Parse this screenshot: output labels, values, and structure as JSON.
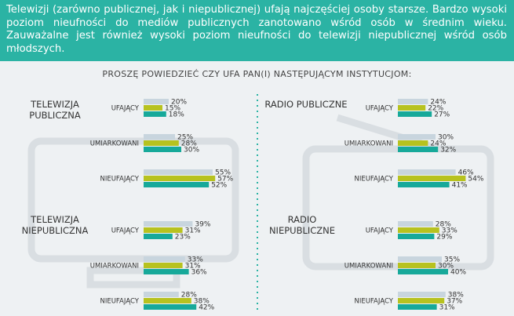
{
  "intro": "Telewizji (zarówno publicznej, jak i niepublicznej) ufają najczęściej osoby starsze. Bardzo wysoki poziom nieufności do mediów publicznych zanotowano wśród osób w średnim wieku. Zauważalne jest również wysoki poziom nieufności do telewizji niepublicznej wśród osób młodszych.",
  "question": "PROSZĘ POWIEDZIEĆ CZY UFA PAN(I) NASTĘPUJĄCYM INSTYTUCJOM:",
  "chart_data": [
    {
      "type": "bar",
      "orientation": "horizontal",
      "title": "TELEWIZJA PUBLICZNA",
      "categories": [
        "UFAJĄCY",
        "UMIARKOWANI",
        "NIEUFAJĄCY"
      ],
      "series": [
        {
          "color": "#c8d5de",
          "values": [
            20,
            25,
            55
          ],
          "value_labels": [
            "20%",
            "25%",
            "55%"
          ]
        },
        {
          "color": "#b7c21f",
          "values": [
            15,
            28,
            57
          ],
          "value_labels": [
            "15%",
            "28%",
            "57%"
          ]
        },
        {
          "color": "#17a99a",
          "values": [
            18,
            30,
            52
          ],
          "value_labels": [
            "18%",
            "30%",
            "52%"
          ]
        }
      ]
    },
    {
      "type": "bar",
      "orientation": "horizontal",
      "title": "RADIO PUBLICZNE",
      "categories": [
        "UFAJĄCY",
        "UMIARKOWANI",
        "NIEUFAJĄCY"
      ],
      "series": [
        {
          "color": "#c8d5de",
          "values": [
            24,
            30,
            46
          ],
          "value_labels": [
            "24%",
            "30%",
            "46%"
          ]
        },
        {
          "color": "#b7c21f",
          "values": [
            22,
            24,
            54
          ],
          "value_labels": [
            "22%",
            "24%",
            "54%"
          ]
        },
        {
          "color": "#17a99a",
          "values": [
            27,
            32,
            41
          ],
          "value_labels": [
            "27%",
            "32%",
            "41%"
          ]
        }
      ]
    },
    {
      "type": "bar",
      "orientation": "horizontal",
      "title": "TELEWIZJA NIEPUBLICZNA",
      "categories": [
        "UFAJĄCY",
        "UMIARKOWANI",
        "NIEUFAJĄCY"
      ],
      "series": [
        {
          "color": "#c8d5de",
          "values": [
            39,
            33,
            28
          ],
          "value_labels": [
            "39%",
            "33%",
            "28%"
          ]
        },
        {
          "color": "#b7c21f",
          "values": [
            31,
            31,
            38
          ],
          "value_labels": [
            "31%",
            "31%",
            "38%"
          ]
        },
        {
          "color": "#17a99a",
          "values": [
            23,
            36,
            42
          ],
          "value_labels": [
            "23%",
            "36%",
            "42%"
          ]
        }
      ]
    },
    {
      "type": "bar",
      "orientation": "horizontal",
      "title": "RADIO NIEPUBLICZNE",
      "categories": [
        "UFAJĄCY",
        "UMIARKOWANI",
        "NIEUFAJĄCY"
      ],
      "series": [
        {
          "color": "#c8d5de",
          "values": [
            28,
            35,
            38
          ],
          "value_labels": [
            "28%",
            "35%",
            "38%"
          ]
        },
        {
          "color": "#b7c21f",
          "values": [
            33,
            30,
            37
          ],
          "value_labels": [
            "33%",
            "30%",
            "37%"
          ]
        },
        {
          "color": "#17a99a",
          "values": [
            29,
            40,
            31
          ],
          "value_labels": [
            "29%",
            "40%",
            "31%"
          ]
        }
      ]
    }
  ]
}
